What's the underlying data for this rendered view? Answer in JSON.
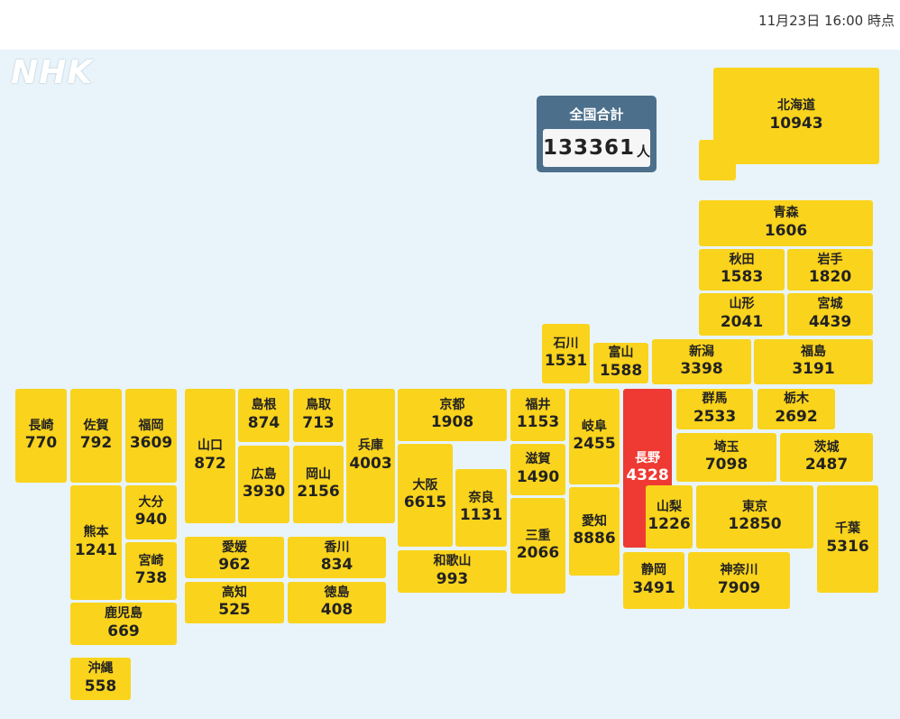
{
  "timestamp": "11月23日 16:00 時点",
  "logo": "NHK",
  "total": {
    "label": "全国合計",
    "value": "133361",
    "unit": "人"
  },
  "colors": {
    "default": "#fad31c",
    "highlight": "#ee3a33",
    "background": "#e8f4fa"
  },
  "prefectures": [
    {
      "id": "hokkaido",
      "name": "北海道",
      "count": "10943"
    },
    {
      "id": "aomori",
      "name": "青森",
      "count": "1606"
    },
    {
      "id": "akita",
      "name": "秋田",
      "count": "1583"
    },
    {
      "id": "iwate",
      "name": "岩手",
      "count": "1820"
    },
    {
      "id": "yamagata",
      "name": "山形",
      "count": "2041"
    },
    {
      "id": "miyagi",
      "name": "宮城",
      "count": "4439"
    },
    {
      "id": "ishikawa",
      "name": "石川",
      "count": "1531"
    },
    {
      "id": "toyama",
      "name": "富山",
      "count": "1588"
    },
    {
      "id": "niigata",
      "name": "新潟",
      "count": "3398"
    },
    {
      "id": "fukushima",
      "name": "福島",
      "count": "3191"
    },
    {
      "id": "nagasaki",
      "name": "長崎",
      "count": "770"
    },
    {
      "id": "saga",
      "name": "佐賀",
      "count": "792"
    },
    {
      "id": "fukuoka",
      "name": "福岡",
      "count": "3609"
    },
    {
      "id": "yamaguchi",
      "name": "山口",
      "count": "872"
    },
    {
      "id": "shimane",
      "name": "島根",
      "count": "874"
    },
    {
      "id": "tottori",
      "name": "鳥取",
      "count": "713"
    },
    {
      "id": "hyogo",
      "name": "兵庫",
      "count": "4003"
    },
    {
      "id": "kyoto",
      "name": "京都",
      "count": "1908"
    },
    {
      "id": "fukui",
      "name": "福井",
      "count": "1153"
    },
    {
      "id": "gifu",
      "name": "岐阜",
      "count": "2455"
    },
    {
      "id": "nagano",
      "name": "長野",
      "count": "4328",
      "alert": true
    },
    {
      "id": "gunma",
      "name": "群馬",
      "count": "2533"
    },
    {
      "id": "tochigi",
      "name": "栃木",
      "count": "2692"
    },
    {
      "id": "hiroshima",
      "name": "広島",
      "count": "3930"
    },
    {
      "id": "okayama",
      "name": "岡山",
      "count": "2156"
    },
    {
      "id": "osaka",
      "name": "大阪",
      "count": "6615"
    },
    {
      "id": "nara",
      "name": "奈良",
      "count": "1131"
    },
    {
      "id": "shiga",
      "name": "滋賀",
      "count": "1490"
    },
    {
      "id": "saitama",
      "name": "埼玉",
      "count": "7098"
    },
    {
      "id": "ibaraki",
      "name": "茨城",
      "count": "2487"
    },
    {
      "id": "oita",
      "name": "大分",
      "count": "940"
    },
    {
      "id": "kumamoto",
      "name": "熊本",
      "count": "1241"
    },
    {
      "id": "miyazaki",
      "name": "宮崎",
      "count": "738"
    },
    {
      "id": "mie",
      "name": "三重",
      "count": "2066"
    },
    {
      "id": "aichi",
      "name": "愛知",
      "count": "8886"
    },
    {
      "id": "yamanashi",
      "name": "山梨",
      "count": "1226"
    },
    {
      "id": "tokyo",
      "name": "東京",
      "count": "12850"
    },
    {
      "id": "chiba",
      "name": "千葉",
      "count": "5316"
    },
    {
      "id": "ehime",
      "name": "愛媛",
      "count": "962"
    },
    {
      "id": "kagawa",
      "name": "香川",
      "count": "834"
    },
    {
      "id": "wakayama",
      "name": "和歌山",
      "count": "993"
    },
    {
      "id": "shizuoka",
      "name": "静岡",
      "count": "3491"
    },
    {
      "id": "kanagawa",
      "name": "神奈川",
      "count": "7909"
    },
    {
      "id": "kochi",
      "name": "高知",
      "count": "525"
    },
    {
      "id": "tokushima",
      "name": "徳島",
      "count": "408"
    },
    {
      "id": "kagoshima",
      "name": "鹿児島",
      "count": "669"
    },
    {
      "id": "okinawa",
      "name": "沖縄",
      "count": "558"
    }
  ]
}
